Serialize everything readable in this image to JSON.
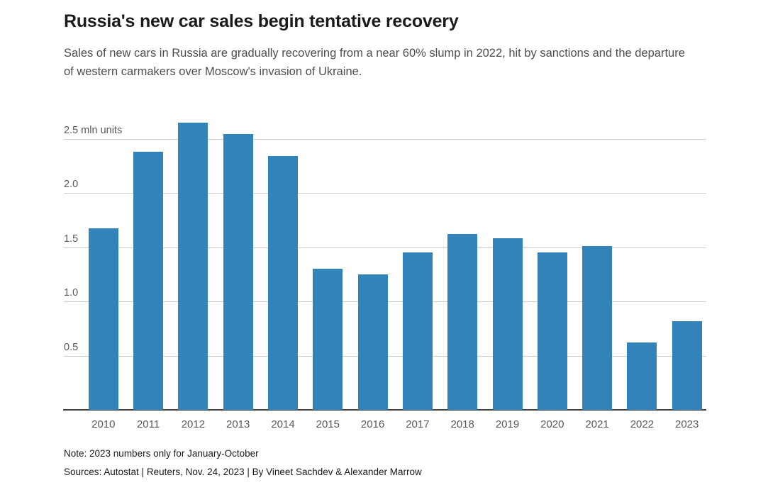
{
  "header": {
    "title": "Russia's new car sales begin tentative recovery",
    "subtitle": "Sales of new cars in Russia are gradually recovering from a near 60% slump in 2022, hit by sanctions and the departure of western carmakers over Moscow's invasion of Ukraine."
  },
  "chart_data": {
    "type": "bar",
    "title": "Russia's new car sales begin tentative recovery",
    "categories": [
      "2010",
      "2011",
      "2012",
      "2013",
      "2014",
      "2015",
      "2016",
      "2017",
      "2018",
      "2019",
      "2020",
      "2021",
      "2022",
      "2023"
    ],
    "values": [
      1.67,
      2.38,
      2.65,
      2.54,
      2.34,
      1.3,
      1.25,
      1.45,
      1.62,
      1.58,
      1.45,
      1.51,
      0.62,
      0.82
    ],
    "unit": "mln units",
    "yticks": [
      0.5,
      1.0,
      1.5,
      2.0,
      2.5
    ],
    "ytick_labels": [
      "0.5",
      "1.0",
      "1.5",
      "2.0",
      "2.5 mln units"
    ],
    "ylim": [
      0,
      2.75
    ],
    "xlabel": "",
    "ylabel": "mln units",
    "grid": true,
    "legend": false,
    "bar_color": "#3383bb",
    "gridline_color": "#cccccc",
    "axis_color": "#404040",
    "tick_label_color": "#595959"
  },
  "footer": {
    "note": "Note: 2023 numbers only for January-October",
    "sources": "Sources: Autostat | Reuters, Nov. 24, 2023 | By Vineet Sachdev & Alexander Marrow"
  }
}
